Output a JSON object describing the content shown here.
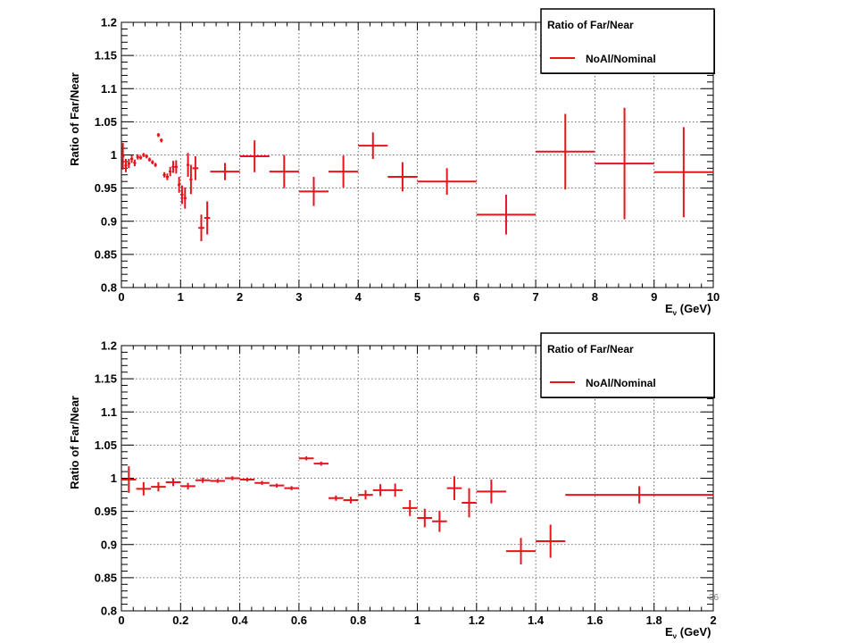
{
  "slide_number": "36",
  "chart_data": [
    {
      "type": "scatter",
      "ylabel": "Ratio of Far/Near",
      "xlabel": {
        "main": "E",
        "sub": "ν",
        "unit": " (GeV)"
      },
      "xlim": [
        0,
        10
      ],
      "ylim": [
        0.8,
        1.2
      ],
      "grid": true,
      "x_ticks": [
        0,
        1,
        2,
        3,
        4,
        5,
        6,
        7,
        8,
        9,
        10
      ],
      "x_tick_labels": [
        "0",
        "1",
        "2",
        "3",
        "4",
        "5",
        "6",
        "7",
        "8",
        "9",
        "10"
      ],
      "y_ticks": [
        0.8,
        0.85,
        0.9,
        0.95,
        1.0,
        1.05,
        1.1,
        1.15,
        1.2
      ],
      "y_tick_labels": [
        "0.8",
        "0.85",
        "0.9",
        "0.95",
        "1",
        "1.05",
        "1.1",
        "1.15",
        "1.2"
      ],
      "legend": {
        "title": "Ratio of Far/Near",
        "entry": "NoAl/Nominal",
        "placement": "top-right"
      },
      "series": [
        {
          "name": "NoAl/Nominal",
          "color": "#e8141c",
          "points": [
            {
              "x": 0.025,
              "y": 0.998,
              "xerr": 0.025,
              "yerr": 0.02
            },
            {
              "x": 0.075,
              "y": 0.984,
              "xerr": 0.025,
              "yerr": 0.01
            },
            {
              "x": 0.125,
              "y": 0.987,
              "xerr": 0.025,
              "yerr": 0.007
            },
            {
              "x": 0.175,
              "y": 0.994,
              "xerr": 0.025,
              "yerr": 0.006
            },
            {
              "x": 0.225,
              "y": 0.988,
              "xerr": 0.025,
              "yerr": 0.005
            },
            {
              "x": 0.275,
              "y": 0.997,
              "xerr": 0.025,
              "yerr": 0.004
            },
            {
              "x": 0.325,
              "y": 0.996,
              "xerr": 0.025,
              "yerr": 0.003
            },
            {
              "x": 0.375,
              "y": 1.0,
              "xerr": 0.025,
              "yerr": 0.003
            },
            {
              "x": 0.425,
              "y": 0.998,
              "xerr": 0.025,
              "yerr": 0.003
            },
            {
              "x": 0.475,
              "y": 0.993,
              "xerr": 0.025,
              "yerr": 0.003
            },
            {
              "x": 0.525,
              "y": 0.989,
              "xerr": 0.025,
              "yerr": 0.003
            },
            {
              "x": 0.575,
              "y": 0.985,
              "xerr": 0.025,
              "yerr": 0.003
            },
            {
              "x": 0.625,
              "y": 1.03,
              "xerr": 0.025,
              "yerr": 0.003
            },
            {
              "x": 0.675,
              "y": 1.022,
              "xerr": 0.025,
              "yerr": 0.003
            },
            {
              "x": 0.725,
              "y": 0.97,
              "xerr": 0.025,
              "yerr": 0.004
            },
            {
              "x": 0.775,
              "y": 0.967,
              "xerr": 0.025,
              "yerr": 0.005
            },
            {
              "x": 0.825,
              "y": 0.975,
              "xerr": 0.025,
              "yerr": 0.007
            },
            {
              "x": 0.875,
              "y": 0.982,
              "xerr": 0.025,
              "yerr": 0.009
            },
            {
              "x": 0.925,
              "y": 0.982,
              "xerr": 0.025,
              "yerr": 0.01
            },
            {
              "x": 0.975,
              "y": 0.955,
              "xerr": 0.025,
              "yerr": 0.012
            },
            {
              "x": 1.025,
              "y": 0.94,
              "xerr": 0.025,
              "yerr": 0.014
            },
            {
              "x": 1.075,
              "y": 0.935,
              "xerr": 0.025,
              "yerr": 0.016
            },
            {
              "x": 1.125,
              "y": 0.985,
              "xerr": 0.025,
              "yerr": 0.018
            },
            {
              "x": 1.175,
              "y": 0.963,
              "xerr": 0.025,
              "yerr": 0.022
            },
            {
              "x": 1.25,
              "y": 0.98,
              "xerr": 0.05,
              "yerr": 0.018
            },
            {
              "x": 1.35,
              "y": 0.89,
              "xerr": 0.05,
              "yerr": 0.02
            },
            {
              "x": 1.45,
              "y": 0.905,
              "xerr": 0.05,
              "yerr": 0.025
            },
            {
              "x": 1.75,
              "y": 0.975,
              "xerr": 0.25,
              "yerr": 0.013
            },
            {
              "x": 2.25,
              "y": 0.998,
              "xerr": 0.25,
              "yerr": 0.024
            },
            {
              "x": 2.75,
              "y": 0.975,
              "xerr": 0.25,
              "yerr": 0.025
            },
            {
              "x": 3.25,
              "y": 0.945,
              "xerr": 0.25,
              "yerr": 0.022
            },
            {
              "x": 3.75,
              "y": 0.975,
              "xerr": 0.25,
              "yerr": 0.024
            },
            {
              "x": 4.25,
              "y": 1.014,
              "xerr": 0.25,
              "yerr": 0.02
            },
            {
              "x": 4.75,
              "y": 0.967,
              "xerr": 0.25,
              "yerr": 0.022
            },
            {
              "x": 5.5,
              "y": 0.96,
              "xerr": 0.5,
              "yerr": 0.02
            },
            {
              "x": 6.5,
              "y": 0.91,
              "xerr": 0.5,
              "yerr": 0.03
            },
            {
              "x": 7.5,
              "y": 1.005,
              "xerr": 0.5,
              "yerr": 0.057
            },
            {
              "x": 8.5,
              "y": 0.987,
              "xerr": 0.5,
              "yerr": 0.084
            },
            {
              "x": 9.5,
              "y": 0.974,
              "xerr": 0.5,
              "yerr": 0.068
            }
          ]
        }
      ]
    },
    {
      "type": "scatter",
      "ylabel": "Ratio of Far/Near",
      "xlabel": {
        "main": "E",
        "sub": "ν",
        "unit": " (GeV)"
      },
      "xlim": [
        0,
        2
      ],
      "ylim": [
        0.8,
        1.2
      ],
      "grid": true,
      "x_ticks": [
        0,
        0.2,
        0.4,
        0.6,
        0.8,
        1.0,
        1.2,
        1.4,
        1.6,
        1.8,
        2.0
      ],
      "x_tick_labels": [
        "0",
        "0.2",
        "0.4",
        "0.6",
        "0.8",
        "1",
        "1.2",
        "1.4",
        "1.6",
        "1.8",
        "2"
      ],
      "y_ticks": [
        0.8,
        0.85,
        0.9,
        0.95,
        1.0,
        1.05,
        1.1,
        1.15,
        1.2
      ],
      "y_tick_labels": [
        "0.8",
        "0.85",
        "0.9",
        "0.95",
        "1",
        "1.05",
        "1.1",
        "1.15",
        "1.2"
      ],
      "legend": {
        "title": "Ratio of Far/Near",
        "entry": "NoAl/Nominal",
        "placement": "top-right"
      },
      "series": [
        {
          "name": "NoAl/Nominal",
          "color": "#e8141c",
          "points": [
            {
              "x": 0.025,
              "y": 0.998,
              "xerr": 0.025,
              "yerr": 0.02
            },
            {
              "x": 0.075,
              "y": 0.984,
              "xerr": 0.025,
              "yerr": 0.01
            },
            {
              "x": 0.125,
              "y": 0.987,
              "xerr": 0.025,
              "yerr": 0.007
            },
            {
              "x": 0.175,
              "y": 0.994,
              "xerr": 0.025,
              "yerr": 0.006
            },
            {
              "x": 0.225,
              "y": 0.988,
              "xerr": 0.025,
              "yerr": 0.005
            },
            {
              "x": 0.275,
              "y": 0.997,
              "xerr": 0.025,
              "yerr": 0.004
            },
            {
              "x": 0.325,
              "y": 0.996,
              "xerr": 0.025,
              "yerr": 0.003
            },
            {
              "x": 0.375,
              "y": 1.0,
              "xerr": 0.025,
              "yerr": 0.003
            },
            {
              "x": 0.425,
              "y": 0.998,
              "xerr": 0.025,
              "yerr": 0.003
            },
            {
              "x": 0.475,
              "y": 0.993,
              "xerr": 0.025,
              "yerr": 0.003
            },
            {
              "x": 0.525,
              "y": 0.989,
              "xerr": 0.025,
              "yerr": 0.003
            },
            {
              "x": 0.575,
              "y": 0.985,
              "xerr": 0.025,
              "yerr": 0.003
            },
            {
              "x": 0.625,
              "y": 1.03,
              "xerr": 0.025,
              "yerr": 0.003
            },
            {
              "x": 0.675,
              "y": 1.022,
              "xerr": 0.025,
              "yerr": 0.003
            },
            {
              "x": 0.725,
              "y": 0.97,
              "xerr": 0.025,
              "yerr": 0.004
            },
            {
              "x": 0.775,
              "y": 0.967,
              "xerr": 0.025,
              "yerr": 0.005
            },
            {
              "x": 0.825,
              "y": 0.975,
              "xerr": 0.025,
              "yerr": 0.007
            },
            {
              "x": 0.875,
              "y": 0.982,
              "xerr": 0.025,
              "yerr": 0.009
            },
            {
              "x": 0.925,
              "y": 0.982,
              "xerr": 0.025,
              "yerr": 0.01
            },
            {
              "x": 0.975,
              "y": 0.955,
              "xerr": 0.025,
              "yerr": 0.012
            },
            {
              "x": 1.025,
              "y": 0.94,
              "xerr": 0.025,
              "yerr": 0.014
            },
            {
              "x": 1.075,
              "y": 0.935,
              "xerr": 0.025,
              "yerr": 0.016
            },
            {
              "x": 1.125,
              "y": 0.985,
              "xerr": 0.025,
              "yerr": 0.018
            },
            {
              "x": 1.175,
              "y": 0.963,
              "xerr": 0.025,
              "yerr": 0.022
            },
            {
              "x": 1.25,
              "y": 0.98,
              "xerr": 0.05,
              "yerr": 0.018
            },
            {
              "x": 1.35,
              "y": 0.89,
              "xerr": 0.05,
              "yerr": 0.02
            },
            {
              "x": 1.45,
              "y": 0.905,
              "xerr": 0.05,
              "yerr": 0.025
            },
            {
              "x": 1.75,
              "y": 0.975,
              "xerr": 0.25,
              "yerr": 0.013
            }
          ]
        }
      ]
    }
  ]
}
